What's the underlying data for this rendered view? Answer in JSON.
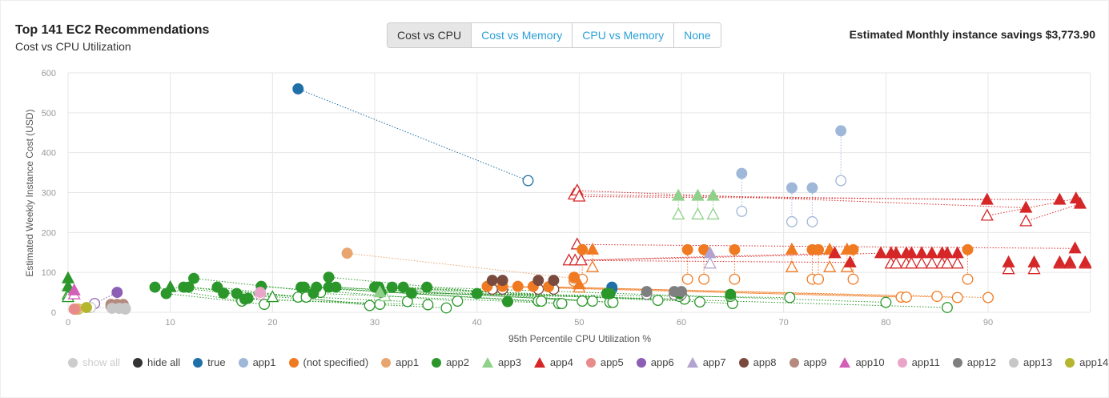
{
  "header": {
    "title": "Top 141 EC2 Recommendations",
    "subtitle": "Cost vs CPU Utilization",
    "savings": "Estimated Monthly instance savings $3,773.90"
  },
  "view_buttons": [
    {
      "label": "Cost vs CPU",
      "active": true
    },
    {
      "label": "Cost vs Memory",
      "active": false
    },
    {
      "label": "CPU vs Memory",
      "active": false
    },
    {
      "label": "None",
      "active": false
    }
  ],
  "legend_controls": [
    {
      "label": "show all",
      "color": "#cccccc",
      "muted": true
    },
    {
      "label": "hide all",
      "color": "#333333",
      "muted": false
    }
  ],
  "chart_data": {
    "type": "scatter",
    "xlabel": "95th Percentile CPU Utilization %",
    "ylabel": "Estimated Weekly Instance Cost (USD)",
    "xlim": [
      0,
      100
    ],
    "ylim": [
      0,
      600
    ],
    "xticks": [
      0,
      10,
      20,
      30,
      40,
      50,
      60,
      70,
      80,
      90
    ],
    "yticks": [
      0,
      100,
      200,
      300,
      400,
      500,
      600
    ],
    "grid": true,
    "legend": "bottom",
    "note": "filled marker = current cost/CPU, hollow marker = recommended; dotted line links them",
    "series": [
      {
        "name": "true",
        "color": "#1f6fa8",
        "shape": "circle",
        "pairs": [
          [
            22.5,
            560,
            45,
            330
          ],
          [
            53.2,
            63,
            53.2,
            58
          ]
        ]
      },
      {
        "name": "app1",
        "color": "#9fb7d8",
        "shape": "circle",
        "pairs": [
          [
            65.9,
            348,
            65.9,
            253
          ],
          [
            70.8,
            312,
            70.8,
            227
          ],
          [
            72.8,
            312,
            72.8,
            227
          ],
          [
            75.6,
            455,
            75.6,
            330
          ]
        ]
      },
      {
        "name": "(not specified)",
        "color": "#f07a22",
        "shape": "circle",
        "pairs": [
          [
            50.3,
            157,
            50.3,
            83
          ],
          [
            60.6,
            157,
            60.6,
            83
          ],
          [
            62.2,
            157,
            62.2,
            83
          ],
          [
            65.2,
            157,
            65.2,
            83
          ],
          [
            72.8,
            157,
            72.8,
            83
          ],
          [
            73.4,
            157,
            73.4,
            83
          ],
          [
            76.8,
            157,
            76.8,
            83
          ],
          [
            88,
            157,
            88,
            83
          ],
          [
            49.5,
            88,
            49.5,
            78
          ],
          [
            41,
            65,
            81.5,
            38
          ],
          [
            42.5,
            65,
            82,
            38
          ],
          [
            44,
            65,
            85,
            40
          ],
          [
            45.5,
            65,
            87,
            37
          ],
          [
            47,
            64,
            90,
            37
          ]
        ],
        "tri_pairs": [
          [
            51.3,
            157,
            51.3,
            113
          ],
          [
            70.8,
            157,
            70.8,
            113
          ],
          [
            74.5,
            157,
            74.5,
            113
          ],
          [
            76.2,
            157,
            76.2,
            113
          ],
          [
            50,
            70,
            50,
            62
          ]
        ]
      },
      {
        "name": "app1",
        "color": "#e9a56f",
        "shape": "circle",
        "pairs": [
          [
            27.3,
            148,
            49.5,
            85
          ],
          [
            0.8,
            8,
            0.8,
            8
          ]
        ]
      },
      {
        "name": "app2",
        "color": "#2b972b",
        "shape": "circle",
        "pairs": [
          [
            8.5,
            63,
            17,
            28
          ],
          [
            9.6,
            47,
            19.2,
            20
          ],
          [
            11.3,
            63,
            22.5,
            38
          ],
          [
            11.8,
            63,
            23.3,
            38
          ],
          [
            12.3,
            85,
            24.7,
            50
          ],
          [
            14.6,
            63,
            29.5,
            17
          ],
          [
            15.2,
            48,
            30.5,
            20
          ],
          [
            16.5,
            47,
            33.2,
            27
          ],
          [
            17.3,
            33,
            35.2,
            19
          ],
          [
            17.6,
            35,
            37,
            11
          ],
          [
            18.9,
            65,
            38.1,
            28
          ],
          [
            22.8,
            63,
            46,
            28
          ],
          [
            23.1,
            63,
            46.3,
            28
          ],
          [
            24,
            48,
            48,
            22
          ],
          [
            24.3,
            63,
            48.3,
            22
          ],
          [
            25.5,
            88,
            50.3,
            28
          ],
          [
            25.5,
            63,
            51.3,
            28
          ],
          [
            26.2,
            63,
            53,
            25
          ],
          [
            30,
            63,
            53.3,
            25
          ],
          [
            30.4,
            63,
            57.7,
            30
          ],
          [
            30.6,
            50,
            60.3,
            33
          ],
          [
            31.7,
            63,
            61.8,
            26
          ],
          [
            32.8,
            63,
            65,
            22
          ],
          [
            33.6,
            48,
            70.6,
            37
          ],
          [
            35.1,
            63,
            80,
            25
          ],
          [
            40,
            47,
            86,
            12
          ],
          [
            43,
            27,
            43,
            27
          ],
          [
            52.7,
            47,
            52.7,
            47
          ],
          [
            53,
            47,
            53,
            47
          ],
          [
            59.8,
            47,
            59.8,
            40
          ],
          [
            64.8,
            45,
            64.8,
            40
          ]
        ],
        "tri_pairs": [
          [
            0,
            85,
            0,
            45
          ],
          [
            0,
            65,
            0,
            38
          ],
          [
            10,
            63,
            20,
            38
          ]
        ]
      },
      {
        "name": "app3",
        "color": "#8fd18a",
        "shape": "triangle",
        "pairs": [
          [
            59.7,
            292,
            59.7,
            245
          ],
          [
            61.6,
            292,
            61.6,
            245
          ],
          [
            63.1,
            292,
            63.1,
            245
          ],
          [
            30.5,
            50,
            31,
            40
          ]
        ]
      },
      {
        "name": "app4",
        "color": "#d62728",
        "shape": "triangle",
        "pairs": [
          [
            89.9,
            282,
            49.5,
            295
          ],
          [
            93.7,
            262,
            49.8,
            305
          ],
          [
            97,
            282,
            50,
            290
          ],
          [
            98.6,
            285,
            89.9,
            242
          ],
          [
            99,
            272,
            93.7,
            228
          ],
          [
            98.5,
            160,
            49.8,
            170
          ],
          [
            75,
            148,
            49,
            130
          ],
          [
            76.5,
            125,
            49.6,
            130
          ],
          [
            79.5,
            148,
            50.2,
            130
          ],
          [
            80.5,
            148,
            80.5,
            122
          ],
          [
            81,
            148,
            81,
            122
          ],
          [
            82,
            148,
            82,
            122
          ],
          [
            82.5,
            148,
            82.5,
            122
          ],
          [
            83.5,
            148,
            83.5,
            122
          ],
          [
            84.5,
            148,
            84.5,
            122
          ],
          [
            85.5,
            148,
            85.5,
            122
          ],
          [
            86,
            148,
            86,
            122
          ],
          [
            87,
            148,
            87,
            122
          ],
          [
            92,
            125,
            92,
            108
          ],
          [
            94.5,
            125,
            94.5,
            108
          ],
          [
            97,
            125,
            97,
            122
          ],
          [
            98,
            125,
            98,
            122
          ],
          [
            99.5,
            125,
            99.5,
            122
          ]
        ]
      },
      {
        "name": "app5",
        "color": "#e88b8b",
        "shape": "circle",
        "pairs": [
          [
            0.6,
            8,
            0.6,
            8
          ]
        ]
      },
      {
        "name": "app6",
        "color": "#8c5fb5",
        "shape": "circle",
        "pairs": [
          [
            4.8,
            50,
            2.6,
            22
          ]
        ]
      },
      {
        "name": "app7",
        "color": "#b3a3d0",
        "shape": "triangle",
        "pairs": [
          [
            62.8,
            148,
            62.8,
            122
          ]
        ]
      },
      {
        "name": "app8",
        "color": "#7b4a3e",
        "shape": "circle",
        "pairs": [
          [
            41.5,
            80,
            41.5,
            58
          ],
          [
            42.5,
            80,
            42.5,
            58
          ],
          [
            46,
            80,
            46,
            58
          ],
          [
            47.5,
            80,
            47.5,
            58
          ]
        ]
      },
      {
        "name": "app9",
        "color": "#b58a7e",
        "shape": "circle",
        "pairs": [
          [
            4.2,
            20,
            4.2,
            15
          ],
          [
            4.8,
            20,
            4.8,
            15
          ],
          [
            5.4,
            20,
            5.4,
            15
          ]
        ]
      },
      {
        "name": "app10",
        "color": "#d45fb8",
        "shape": "triangle",
        "pairs": [
          [
            0.6,
            55,
            0.6,
            45
          ]
        ]
      },
      {
        "name": "app11",
        "color": "#e8a5c8",
        "shape": "circle",
        "pairs": [
          [
            18.8,
            50,
            18.8,
            45
          ]
        ]
      },
      {
        "name": "app12",
        "color": "#7f7f7f",
        "shape": "circle",
        "pairs": [
          [
            56.6,
            52,
            56.6,
            45
          ],
          [
            59.3,
            52,
            59.3,
            45
          ],
          [
            60,
            52,
            60,
            45
          ]
        ]
      },
      {
        "name": "app13",
        "color": "#c7c7c7",
        "shape": "circle",
        "pairs": [
          [
            4.3,
            10,
            2.2,
            12
          ],
          [
            5,
            10,
            5,
            10
          ],
          [
            5.6,
            10,
            5.6,
            8
          ]
        ]
      },
      {
        "name": "app14",
        "color": "#b5b52e",
        "shape": "circle",
        "pairs": [
          [
            1.8,
            12,
            1,
            8
          ]
        ]
      }
    ]
  }
}
